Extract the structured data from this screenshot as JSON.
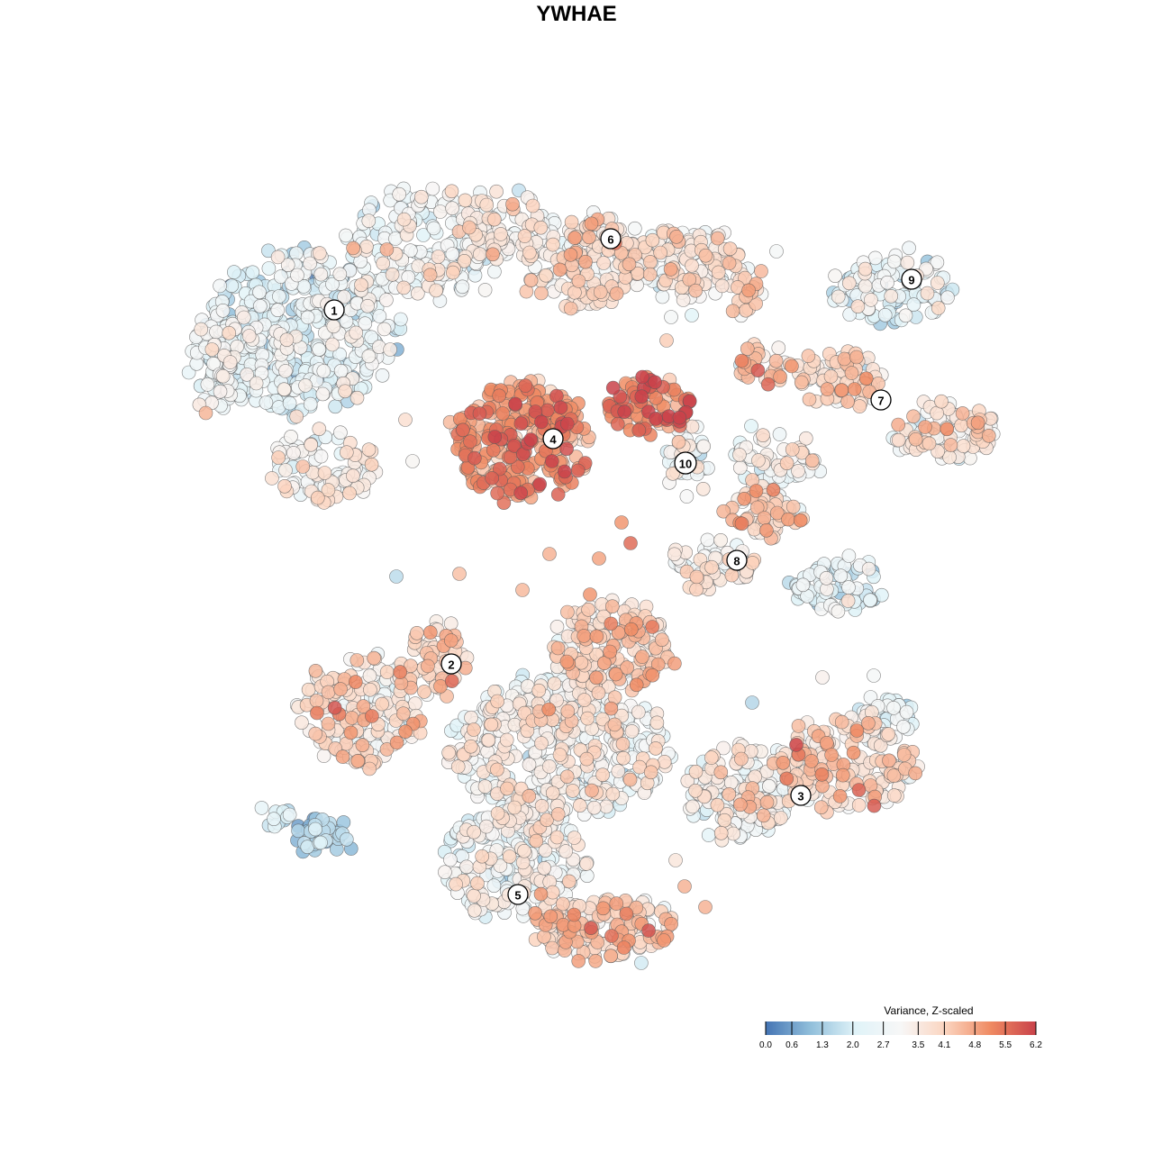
{
  "title": "YWHAE",
  "chart_data": {
    "type": "scatter",
    "title": "YWHAE",
    "xlabel": "",
    "ylabel": "",
    "grid": false,
    "color_scale": {
      "title": "Variance, Z-scaled",
      "min": 0.0,
      "max": 6.2,
      "ticks": [
        "0.0",
        "0.6",
        "1.3",
        "2.0",
        "2.7",
        "3.5",
        "4.1",
        "4.8",
        "5.5",
        "6.2"
      ],
      "colors": [
        "#4575b4",
        "#91bfdb",
        "#e0f3f8",
        "#f7f7f7",
        "#fbd4bf",
        "#ef8a62",
        "#c9424a"
      ],
      "placement": "bottom-right"
    },
    "clusters": [
      {
        "label": "1",
        "mean_value": 2.4
      },
      {
        "label": "2",
        "mean_value": 3.8
      },
      {
        "label": "3",
        "mean_value": 3.9
      },
      {
        "label": "4",
        "mean_value": 5.0
      },
      {
        "label": "5",
        "mean_value": 3.2
      },
      {
        "label": "6",
        "mean_value": 3.4
      },
      {
        "label": "7",
        "mean_value": 3.5
      },
      {
        "label": "8",
        "mean_value": 3.0
      },
      {
        "label": "9",
        "mean_value": 2.3
      },
      {
        "label": "10",
        "mean_value": 3.0
      }
    ]
  }
}
